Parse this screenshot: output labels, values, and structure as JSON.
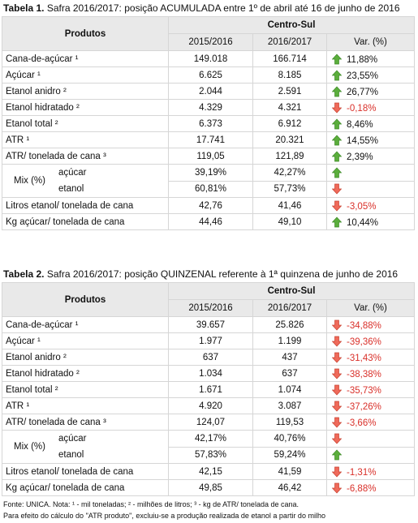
{
  "tables": [
    {
      "caption_label": "Tabela 1.",
      "caption": "Safra 2016/2017: posição ACUMULADA entre 1º de abril até 16 de junho de 2016",
      "header": {
        "products": "Produtos",
        "region": "Centro-Sul",
        "col1": "2015/2016",
        "col2": "2016/2017",
        "var": "Var. (%)"
      },
      "rows": [
        {
          "label": "Cana-de-açúcar ¹",
          "v1": "149.018",
          "v2": "166.714",
          "arrow": "up",
          "var": "11,88%"
        },
        {
          "label": "Açúcar ¹",
          "v1": "6.625",
          "v2": "8.185",
          "arrow": "up",
          "var": "23,55%"
        },
        {
          "label": "Etanol anidro ²",
          "v1": "2.044",
          "v2": "2.591",
          "arrow": "up",
          "var": "26,77%"
        },
        {
          "label": "Etanol hidratado ²",
          "v1": "4.329",
          "v2": "4.321",
          "arrow": "down",
          "var": "-0,18%"
        },
        {
          "label": "Etanol total ²",
          "v1": "6.373",
          "v2": "6.912",
          "arrow": "up",
          "var": "8,46%"
        },
        {
          "label": "ATR ¹",
          "v1": "17.741",
          "v2": "20.321",
          "arrow": "up",
          "var": "14,55%"
        },
        {
          "label": "ATR/ tonelada de cana ³",
          "v1": "119,05",
          "v2": "121,89",
          "arrow": "up",
          "var": "2,39%"
        },
        {
          "label": "Mix (%)",
          "sub": [
            {
              "label": "açúcar",
              "v1": "39,19%",
              "v2": "42,27%",
              "arrow": "up"
            },
            {
              "label": "etanol",
              "v1": "60,81%",
              "v2": "57,73%",
              "arrow": "down"
            }
          ]
        },
        {
          "label": "Litros etanol/ tonelada de cana",
          "v1": "42,76",
          "v2": "41,46",
          "arrow": "down",
          "var": "-3,05%"
        },
        {
          "label": "Kg açúcar/ tonelada de cana",
          "v1": "44,46",
          "v2": "49,10",
          "arrow": "up",
          "var": "10,44%"
        }
      ]
    },
    {
      "caption_label": "Tabela 2.",
      "caption": "Safra 2016/2017: posição QUINZENAL referente à 1ª quinzena de junho de 2016",
      "header": {
        "products": "Produtos",
        "region": "Centro-Sul",
        "col1": "2015/2016",
        "col2": "2016/2017",
        "var": "Var. (%)"
      },
      "rows": [
        {
          "label": "Cana-de-açúcar ¹",
          "v1": "39.657",
          "v2": "25.826",
          "arrow": "down",
          "var": "-34,88%"
        },
        {
          "label": "Açúcar ¹",
          "v1": "1.977",
          "v2": "1.199",
          "arrow": "down",
          "var": "-39,36%"
        },
        {
          "label": "Etanol anidro ²",
          "v1": "637",
          "v2": "437",
          "arrow": "down",
          "var": "-31,43%"
        },
        {
          "label": "Etanol hidratado ²",
          "v1": "1.034",
          "v2": "637",
          "arrow": "down",
          "var": "-38,38%"
        },
        {
          "label": "Etanol total ²",
          "v1": "1.671",
          "v2": "1.074",
          "arrow": "down",
          "var": "-35,73%"
        },
        {
          "label": "ATR ¹",
          "v1": "4.920",
          "v2": "3.087",
          "arrow": "down",
          "var": "-37,26%"
        },
        {
          "label": "ATR/ tonelada de cana ³",
          "v1": "124,07",
          "v2": "119,53",
          "arrow": "down",
          "var": "-3,66%"
        },
        {
          "label": "Mix (%)",
          "sub": [
            {
              "label": "açúcar",
              "v1": "42,17%",
              "v2": "40,76%",
              "arrow": "down"
            },
            {
              "label": "etanol",
              "v1": "57,83%",
              "v2": "59,24%",
              "arrow": "up"
            }
          ]
        },
        {
          "label": "Litros etanol/ tonelada de cana",
          "v1": "42,15",
          "v2": "41,59",
          "arrow": "down",
          "var": "-1,31%"
        },
        {
          "label": "Kg açúcar/ tonelada de cana",
          "v1": "49,85",
          "v2": "46,42",
          "arrow": "down",
          "var": "-6,88%"
        }
      ]
    }
  ],
  "footnotes": [
    "Fonte: UNICA. Nota: ¹ - mil toneladas; ² - milhões de litros; ³ - kg de ATR/ tonelada de cana.",
    "Para efeito do cálculo do \"ATR produto\", excluiu-se a produção realizada de etanol a partir do milho"
  ]
}
